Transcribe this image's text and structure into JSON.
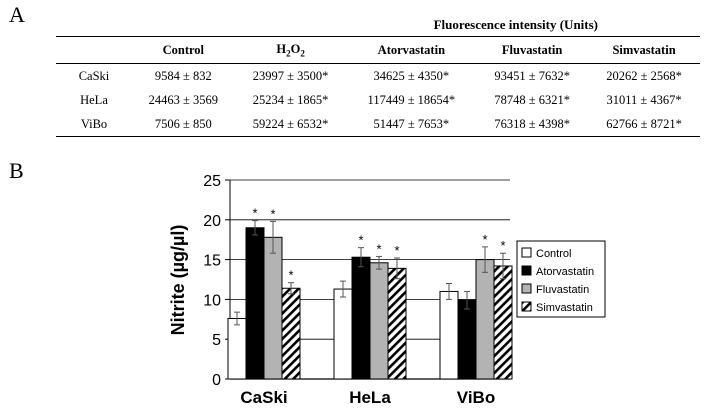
{
  "panel_a": {
    "label": "A",
    "caption": "Fluorescence intensity (Units)",
    "columns": [
      "Control",
      "H2O2",
      "Atorvastatin",
      "Fluvastatin",
      "Simvastatin"
    ],
    "rows": [
      {
        "label": "CaSki",
        "values": [
          "9584 ± 832",
          "23997 ± 3500*",
          "34625 ± 4350*",
          "93451 ± 7632*",
          "20262 ± 2568*"
        ]
      },
      {
        "label": "HeLa",
        "values": [
          "24463 ± 3569",
          "25234 ± 1865*",
          "117449 ± 18654*",
          "78748 ± 6321*",
          "31011 ± 4367*"
        ]
      },
      {
        "label": "ViBo",
        "values": [
          "7506 ± 850",
          "59224 ± 6532*",
          "51447 ± 7653*",
          "76318 ± 4398*",
          "62766 ± 8721*"
        ]
      }
    ]
  },
  "panel_b": {
    "label": "B"
  },
  "chart_data": {
    "type": "bar",
    "ylabel": "Nitrite (µg/µl)",
    "xlabel": "",
    "ylim": [
      0,
      25
    ],
    "yticks": [
      0,
      5,
      10,
      15,
      20,
      25
    ],
    "grid": true,
    "legend_position": "right",
    "categories": [
      "CaSki",
      "HeLa",
      "ViBo"
    ],
    "series": [
      {
        "name": "Control",
        "fill": "#ffffff",
        "pattern": "none",
        "values": [
          7.6,
          11.3,
          11.0
        ],
        "errors": [
          0.8,
          1.0,
          1.0
        ],
        "significant": [
          false,
          false,
          false
        ]
      },
      {
        "name": "Atorvastatin",
        "fill": "#000000",
        "pattern": "none",
        "values": [
          19.0,
          15.3,
          9.9
        ],
        "errors": [
          0.9,
          1.2,
          1.1
        ],
        "significant": [
          true,
          true,
          false
        ]
      },
      {
        "name": "Fluvastatin",
        "fill": "#b3b3b3",
        "pattern": "none",
        "values": [
          17.8,
          14.6,
          15.0
        ],
        "errors": [
          2.0,
          0.8,
          1.6
        ],
        "significant": [
          true,
          true,
          true
        ]
      },
      {
        "name": "Simvastatin",
        "fill": "#ffffff",
        "pattern": "diagonal-hatch",
        "values": [
          11.4,
          13.9,
          14.2
        ],
        "errors": [
          0.7,
          1.3,
          1.6
        ],
        "significant": [
          true,
          true,
          true
        ]
      }
    ],
    "significance_marker": "*"
  }
}
